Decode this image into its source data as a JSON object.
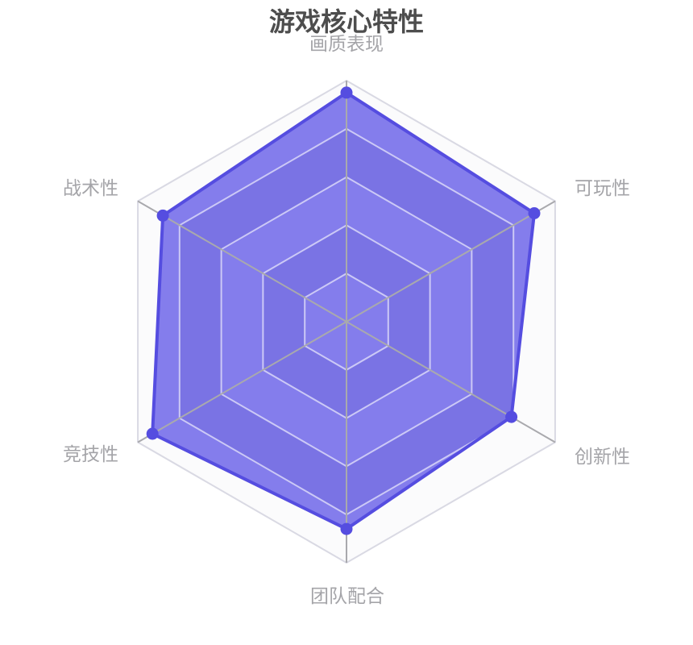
{
  "chart_data": {
    "type": "radar",
    "title": "游戏核心特性",
    "levels": 5,
    "start_angle": 90,
    "direction": "clockwise",
    "scale": {
      "min": 0,
      "max": 10
    },
    "grid": "hexagonal-rings",
    "legend": "none",
    "indicators": [
      {
        "name": "画质表现",
        "max": 10
      },
      {
        "name": "可玩性",
        "max": 10
      },
      {
        "name": "创新性",
        "max": 10
      },
      {
        "name": "团队配合",
        "max": 10
      },
      {
        "name": "竞技性",
        "max": 10
      },
      {
        "name": "战术性",
        "max": 10
      }
    ],
    "series": [
      {
        "values": [
          9.5,
          9.0,
          7.9,
          8.6,
          9.3,
          8.8
        ]
      }
    ],
    "colors": {
      "accent_line": "#554DE0",
      "area_fill": "rgba(75,65,228,0.68)",
      "ring_light": "#fbfbfc",
      "ring_dark": "#dddde3",
      "outer_border": "#d9d9e3",
      "split_line": "rgba(255,255,255,0.6)",
      "axis_line": "#a9a9ad",
      "title_color": "#4d4d4d",
      "axis_name_color": "#a4a4a8",
      "background": "#ffffff"
    }
  }
}
